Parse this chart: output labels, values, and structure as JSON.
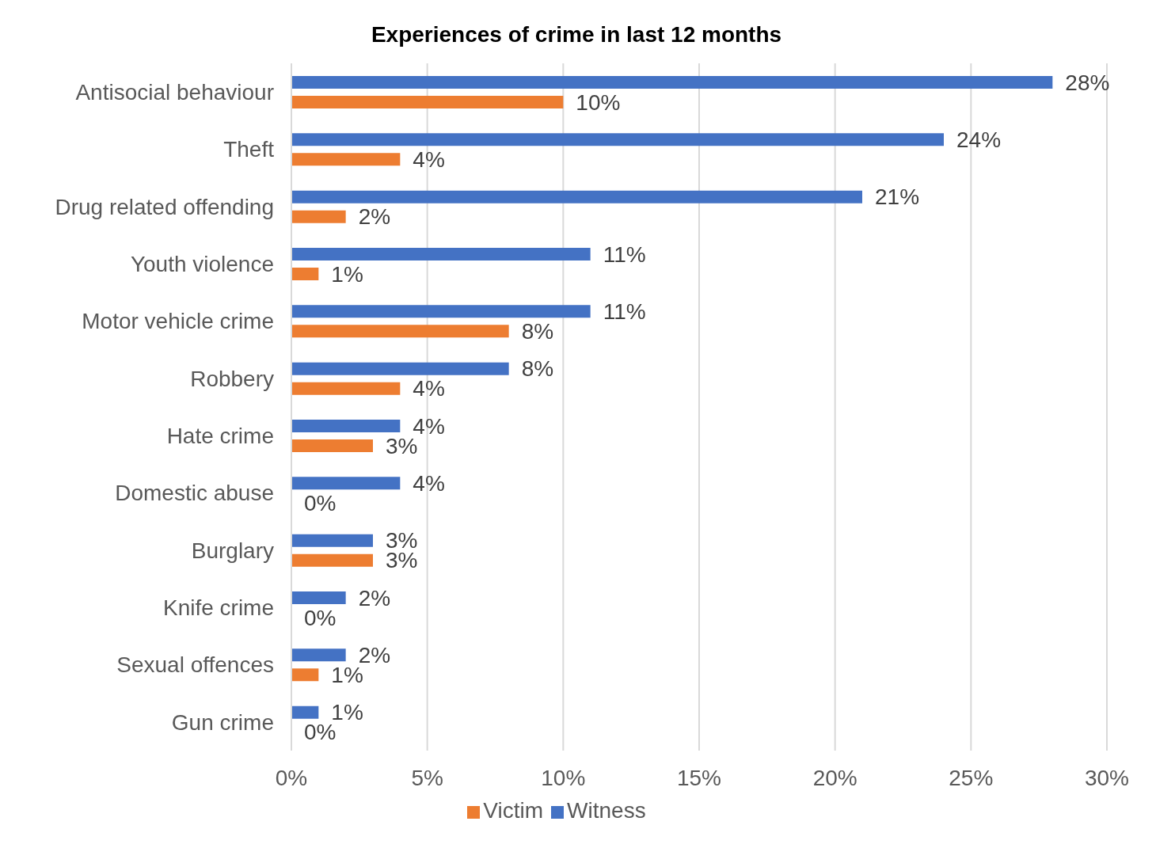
{
  "chart_data": {
    "type": "bar",
    "orientation": "horizontal",
    "title": "Experiences of crime in last 12 months",
    "categories": [
      "Antisocial behaviour",
      "Theft",
      "Drug related offending",
      "Youth violence",
      "Motor vehicle crime",
      "Robbery",
      "Hate crime",
      "Domestic abuse",
      "Burglary",
      "Knife crime",
      "Sexual offences",
      "Gun crime"
    ],
    "series": [
      {
        "name": "Witness",
        "color": "#4472c4",
        "values": [
          28,
          24,
          21,
          11,
          11,
          8,
          4,
          4,
          3,
          2,
          2,
          1
        ],
        "value_labels": [
          "28%",
          "24%",
          "21%",
          "11%",
          "11%",
          "8%",
          "4%",
          "4%",
          "3%",
          "2%",
          "2%",
          "1%"
        ]
      },
      {
        "name": "Victim",
        "color": "#ed7d31",
        "values": [
          10,
          4,
          2,
          1,
          8,
          4,
          3,
          0,
          3,
          0,
          1,
          0
        ],
        "value_labels": [
          "10%",
          "4%",
          "2%",
          "1%",
          "8%",
          "4%",
          "3%",
          "0%",
          "3%",
          "0%",
          "1%",
          "0%"
        ]
      }
    ],
    "xlim": [
      0,
      30
    ],
    "xticks": [
      {
        "value": 0,
        "label": "0%"
      },
      {
        "value": 5,
        "label": "5%"
      },
      {
        "value": 10,
        "label": "10%"
      },
      {
        "value": 15,
        "label": "15%"
      },
      {
        "value": 20,
        "label": "20%"
      },
      {
        "value": 25,
        "label": "25%"
      },
      {
        "value": 30,
        "label": "30%"
      }
    ],
    "grid": "x",
    "legend": "bottom"
  }
}
